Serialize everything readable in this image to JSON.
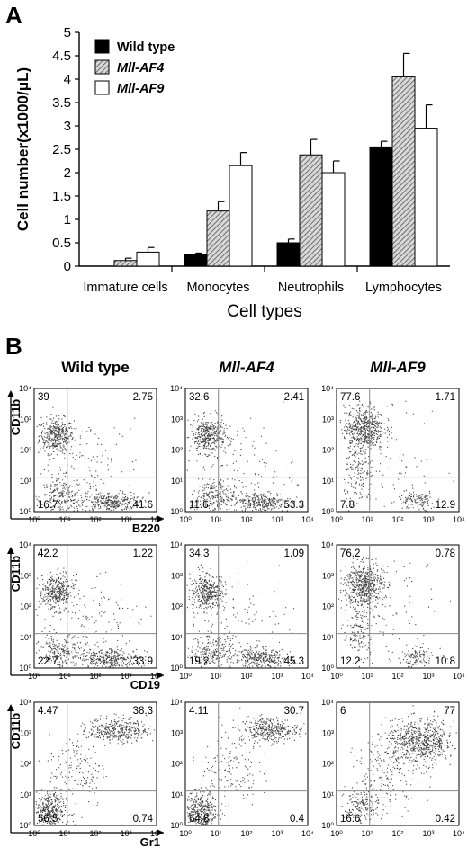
{
  "panel_a_label": "A",
  "panel_b_label": "B",
  "chart_data": {
    "type": "bar",
    "categories": [
      "Immature cells",
      "Monocytes",
      "Neutrophils",
      "Lymphocytes"
    ],
    "series": [
      {
        "name": "Wild type",
        "values": [
          0.0,
          0.25,
          0.5,
          2.55
        ],
        "errors": [
          0.0,
          0.03,
          0.08,
          0.12
        ],
        "color": "#000000",
        "pattern": "solid"
      },
      {
        "name": "Mll-AF4",
        "values": [
          0.12,
          1.18,
          2.38,
          4.05
        ],
        "errors": [
          0.05,
          0.2,
          0.33,
          0.5
        ],
        "color": "#b0b0b0",
        "pattern": "hatched"
      },
      {
        "name": "Mll-AF9",
        "values": [
          0.3,
          2.15,
          2.0,
          2.95
        ],
        "errors": [
          0.1,
          0.28,
          0.25,
          0.5
        ],
        "color": "#ffffff",
        "pattern": "open"
      }
    ],
    "ylabel": "Cell number(x1000/μL)",
    "xlabel": "Cell types",
    "ylim": [
      0,
      5
    ],
    "yticks": [
      "0",
      "0.5",
      "1",
      "1.5",
      "2",
      "2.5",
      "3",
      "3.5",
      "4",
      "4.5",
      "5"
    ],
    "legend_position": "top-left"
  },
  "flow": {
    "columns": [
      "Wild type",
      "Mll-AF4",
      "Mll-AF9"
    ],
    "tick_labels": {
      "x": [
        "10⁰",
        "10¹",
        "10²",
        "10³",
        "10⁴"
      ],
      "y": [
        "10⁰",
        "10¹",
        "10²",
        "10³",
        "10⁴"
      ]
    },
    "y_marker": "CD11b",
    "rows": [
      {
        "x_marker": "B220",
        "plots": [
          {
            "ul": "39",
            "ur": "2.75",
            "ll": "16.7",
            "lr": "41.6",
            "pattern": "b220"
          },
          {
            "ul": "32.6",
            "ur": "2.41",
            "ll": "11.6",
            "lr": "53.3",
            "pattern": "b220"
          },
          {
            "ul": "77.6",
            "ur": "1.71",
            "ll": "7.8",
            "lr": "12.9",
            "pattern": "b220-af9"
          }
        ]
      },
      {
        "x_marker": "CD19",
        "plots": [
          {
            "ul": "42.2",
            "ur": "1.22",
            "ll": "22.7",
            "lr": "33.9",
            "pattern": "b220"
          },
          {
            "ul": "34.3",
            "ur": "1.09",
            "ll": "19.2",
            "lr": "45.3",
            "pattern": "b220"
          },
          {
            "ul": "76.2",
            "ur": "0.78",
            "ll": "12.2",
            "lr": "10.8",
            "pattern": "b220-af9"
          }
        ]
      },
      {
        "x_marker": "Gr1",
        "plots": [
          {
            "ul": "4.47",
            "ur": "38.3",
            "ll": "56.5",
            "lr": "0.74",
            "pattern": "gr1"
          },
          {
            "ul": "4.11",
            "ur": "30.7",
            "ll": "64.8",
            "lr": "0.4",
            "pattern": "gr1"
          },
          {
            "ul": "6",
            "ur": "77",
            "ll": "16.6",
            "lr": "0.42",
            "pattern": "gr1-af9"
          }
        ]
      }
    ]
  }
}
